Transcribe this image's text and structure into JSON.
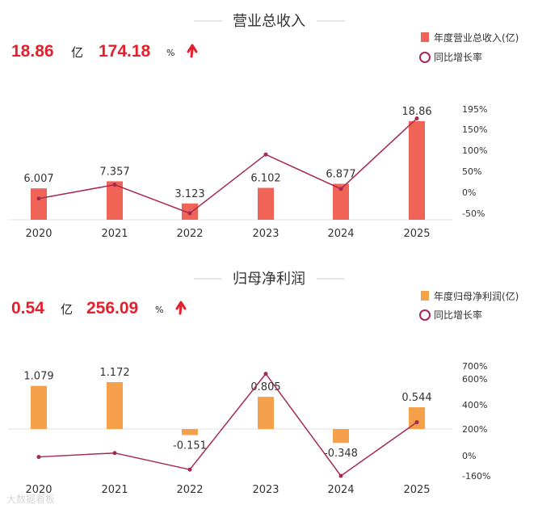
{
  "chart_data": [
    {
      "type": "bar",
      "title": "营业总收入",
      "headline": {
        "value": "18.86",
        "unit": "亿",
        "growth": "174.18",
        "growth_unit": "%"
      },
      "categories": [
        "2020",
        "2021",
        "2022",
        "2023",
        "2024",
        "2025"
      ],
      "series": [
        {
          "name": "年度营业总收入(亿)",
          "kind": "bar",
          "values": [
            6.007,
            7.357,
            3.123,
            6.102,
            6.877,
            18.86
          ],
          "labels": [
            "6.007",
            "7.357",
            "3.123",
            "6.102",
            "6.877",
            "18.86"
          ]
        },
        {
          "name": "同比增长率",
          "kind": "line",
          "axis": "right",
          "values": [
            -15,
            18,
            -60,
            90,
            8,
            174.18
          ]
        }
      ],
      "y2_ticks": [
        "195%",
        "150%",
        "100%",
        "50%",
        "0%",
        "-50%"
      ],
      "y2_tick_values": [
        195,
        150,
        100,
        50,
        0,
        -50
      ],
      "colors": {
        "bar": "#f06457",
        "line": "#a52a50",
        "arrow": "#e4202d"
      }
    },
    {
      "type": "bar",
      "title": "归母净利润",
      "headline": {
        "value": "0.54",
        "unit": "亿",
        "growth": "256.09",
        "growth_unit": "%"
      },
      "categories": [
        "2020",
        "2021",
        "2022",
        "2023",
        "2024",
        "2025"
      ],
      "series": [
        {
          "name": "年度归母净利润(亿)",
          "kind": "bar",
          "values": [
            1.079,
            1.172,
            -0.151,
            0.805,
            -0.348,
            0.544
          ],
          "labels": [
            "1.079",
            "1.172",
            "-0.151",
            "0.805",
            "-0.348",
            "0.544"
          ]
        },
        {
          "name": "同比增长率",
          "kind": "line",
          "axis": "right",
          "values": [
            -10,
            20,
            -110,
            640,
            -160,
            256.09
          ]
        }
      ],
      "y2_ticks": [
        "700%",
        "600%",
        "400%",
        "200%",
        "0%",
        "-160%"
      ],
      "y2_tick_values": [
        700,
        600,
        400,
        200,
        0,
        -160
      ],
      "colors": {
        "bar": "#f5a04a",
        "line": "#a52a50",
        "arrow": "#e4202d"
      }
    }
  ],
  "watermark": "大数据看板"
}
